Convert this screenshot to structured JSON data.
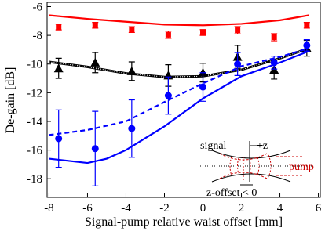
{
  "chart_data": {
    "type": "line",
    "xlabel": "Signal-pump relative waist offset [mm]",
    "ylabel": "De-gain [dB]",
    "xlim": [
      -8.1,
      6.1
    ],
    "ylim": [
      -19.3,
      -5.7
    ],
    "xticks": [
      -8,
      -6,
      -4,
      -2,
      0,
      2,
      4,
      6
    ],
    "yticks": [
      -6,
      -8,
      -10,
      -12,
      -14,
      -16,
      -18
    ],
    "series": [
      {
        "kind": "line",
        "color": "#ff0000",
        "style": "solid",
        "x": [
          -8,
          -6,
          -4,
          -2,
          0,
          2,
          4,
          5.5
        ],
        "values": [
          -6.6,
          -6.85,
          -7.05,
          -7.25,
          -7.3,
          -7.2,
          -6.95,
          -6.6
        ]
      },
      {
        "kind": "markers",
        "marker": "square",
        "color": "#ff0000",
        "x": [
          -7.5,
          -5.6,
          -3.7,
          -1.8,
          0,
          1.8,
          3.7,
          5.4
        ],
        "values": [
          -7.42,
          -7.3,
          -7.6,
          -7.96,
          -7.8,
          -7.64,
          -8.13,
          -7.3
        ],
        "errors": [
          0.2,
          0.2,
          0.2,
          0.25,
          0.2,
          0.25,
          0.25,
          0.2
        ]
      },
      {
        "kind": "line",
        "color": "#000000",
        "style": "solid-dotted",
        "x": [
          -8,
          -6,
          -4,
          -2,
          0,
          2,
          4,
          5.5
        ],
        "values": [
          -9.85,
          -10.2,
          -10.65,
          -10.9,
          -10.85,
          -10.4,
          -9.6,
          -8.9
        ]
      },
      {
        "kind": "markers",
        "marker": "triangle",
        "color": "#000000",
        "x": [
          -7.5,
          -5.6,
          -3.7,
          -1.8,
          0,
          1.8,
          3.7,
          5.4
        ],
        "values": [
          -10.3,
          -9.9,
          -10.5,
          -10.8,
          -10.6,
          -9.5,
          -10.4,
          -8.9
        ],
        "errors": [
          0.7,
          0.7,
          0.65,
          0.75,
          0.65,
          0.8,
          0.65,
          0.55
        ]
      },
      {
        "kind": "line",
        "color": "#0000ff",
        "style": "dashed",
        "x": [
          -8,
          -6,
          -4,
          -2,
          0,
          2,
          4,
          5.5
        ],
        "values": [
          -14.95,
          -14.6,
          -14.0,
          -12.65,
          -11.35,
          -10.15,
          -9.5,
          -8.9
        ]
      },
      {
        "kind": "line",
        "color": "#0000ff",
        "style": "solid",
        "x": [
          -8,
          -6,
          -5,
          -4,
          -2,
          0,
          2,
          4,
          5.5
        ],
        "values": [
          -16.6,
          -16.9,
          -16.6,
          -16.0,
          -14.35,
          -12.4,
          -10.85,
          -9.9,
          -9.1
        ]
      },
      {
        "kind": "markers",
        "marker": "circle",
        "color": "#0000ff",
        "x": [
          -7.5,
          -5.6,
          -3.7,
          -1.8,
          0,
          1.8,
          3.7,
          5.4
        ],
        "values": [
          -15.2,
          -15.9,
          -14.5,
          -12.2,
          -11.6,
          -10.0,
          -9.9,
          -8.7
        ],
        "errors": [
          2.0,
          2.6,
          2.0,
          1.3,
          1.0,
          0.8,
          0.45,
          0.4
        ]
      }
    ],
    "annotations": [
      "signal",
      "+z",
      "pump",
      "z-offset < 0"
    ]
  }
}
